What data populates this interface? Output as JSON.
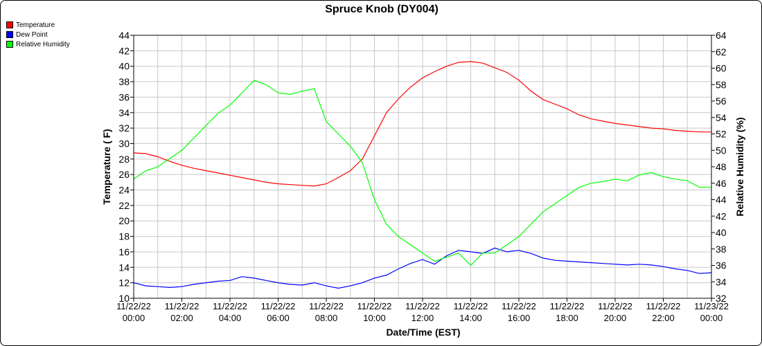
{
  "chart_data": {
    "type": "line",
    "title": "Spruce Knob (DY004)",
    "xlabel": "Date/Time (EST)",
    "ylabel": "Temperature ( F)",
    "y2label": "Relative Humidity (%)",
    "ylim": [
      10,
      44
    ],
    "y2lim": [
      32,
      64
    ],
    "yticks": [
      "10",
      "12",
      "14",
      "16",
      "18",
      "20",
      "22",
      "24",
      "26",
      "28",
      "30",
      "32",
      "34",
      "36",
      "38",
      "40",
      "42",
      "44"
    ],
    "y2ticks": [
      "32",
      "34",
      "36",
      "38",
      "40",
      "42",
      "44",
      "46",
      "48",
      "50",
      "52",
      "54",
      "56",
      "58",
      "60",
      "62",
      "64"
    ],
    "xticks": [
      {
        "date": "11/22/22",
        "time": "00:00"
      },
      {
        "date": "11/22/22",
        "time": "02:00"
      },
      {
        "date": "11/22/22",
        "time": "04:00"
      },
      {
        "date": "11/22/22",
        "time": "06:00"
      },
      {
        "date": "11/22/22",
        "time": "08:00"
      },
      {
        "date": "11/22/22",
        "time": "10:00"
      },
      {
        "date": "11/22/22",
        "time": "12:00"
      },
      {
        "date": "11/22/22",
        "time": "14:00"
      },
      {
        "date": "11/22/22",
        "time": "16:00"
      },
      {
        "date": "11/22/22",
        "time": "18:00"
      },
      {
        "date": "11/22/22",
        "time": "20:00"
      },
      {
        "date": "11/22/22",
        "time": "22:00"
      },
      {
        "date": "11/23/22",
        "time": "00:00"
      }
    ],
    "grid": true,
    "legend_position": "top-left",
    "series": [
      {
        "name": "Temperature",
        "color": "#ff0000",
        "axis": "left",
        "points": [
          [
            "00:00",
            28.8
          ],
          [
            "00:30",
            28.7
          ],
          [
            "01:00",
            28.3
          ],
          [
            "01:30",
            27.7
          ],
          [
            "02:00",
            27.2
          ],
          [
            "02:30",
            26.8
          ],
          [
            "03:00",
            26.5
          ],
          [
            "03:30",
            26.2
          ],
          [
            "04:00",
            25.9
          ],
          [
            "04:30",
            25.6
          ],
          [
            "05:00",
            25.3
          ],
          [
            "05:30",
            25.0
          ],
          [
            "06:00",
            24.8
          ],
          [
            "06:30",
            24.7
          ],
          [
            "07:00",
            24.6
          ],
          [
            "07:30",
            24.5
          ],
          [
            "08:00",
            24.8
          ],
          [
            "08:30",
            25.6
          ],
          [
            "09:00",
            26.5
          ],
          [
            "09:30",
            28.0
          ],
          [
            "10:00",
            31.0
          ],
          [
            "10:30",
            34.0
          ],
          [
            "11:00",
            35.8
          ],
          [
            "11:30",
            37.3
          ],
          [
            "12:00",
            38.5
          ],
          [
            "12:30",
            39.3
          ],
          [
            "13:00",
            40.0
          ],
          [
            "13:30",
            40.5
          ],
          [
            "14:00",
            40.6
          ],
          [
            "14:30",
            40.4
          ],
          [
            "15:00",
            39.8
          ],
          [
            "15:30",
            39.2
          ],
          [
            "16:00",
            38.2
          ],
          [
            "16:30",
            36.8
          ],
          [
            "17:00",
            35.7
          ],
          [
            "17:30",
            35.1
          ],
          [
            "18:00",
            34.5
          ],
          [
            "18:30",
            33.7
          ],
          [
            "19:00",
            33.2
          ],
          [
            "19:30",
            32.9
          ],
          [
            "20:00",
            32.6
          ],
          [
            "20:30",
            32.4
          ],
          [
            "21:00",
            32.2
          ],
          [
            "21:30",
            32.0
          ],
          [
            "22:00",
            31.9
          ],
          [
            "22:30",
            31.7
          ],
          [
            "23:00",
            31.6
          ],
          [
            "23:30",
            31.5
          ],
          [
            "24:00",
            31.5
          ]
        ]
      },
      {
        "name": "Dew Point",
        "color": "#0000ff",
        "axis": "left",
        "points": [
          [
            "00:00",
            12.0
          ],
          [
            "00:30",
            11.6
          ],
          [
            "01:00",
            11.5
          ],
          [
            "01:30",
            11.4
          ],
          [
            "02:00",
            11.5
          ],
          [
            "02:30",
            11.8
          ],
          [
            "03:00",
            12.0
          ],
          [
            "03:30",
            12.2
          ],
          [
            "04:00",
            12.3
          ],
          [
            "04:30",
            12.8
          ],
          [
            "05:00",
            12.6
          ],
          [
            "05:30",
            12.3
          ],
          [
            "06:00",
            12.0
          ],
          [
            "06:30",
            11.8
          ],
          [
            "07:00",
            11.7
          ],
          [
            "07:30",
            12.0
          ],
          [
            "08:00",
            11.6
          ],
          [
            "08:30",
            11.3
          ],
          [
            "09:00",
            11.6
          ],
          [
            "09:30",
            12.0
          ],
          [
            "10:00",
            12.6
          ],
          [
            "10:30",
            13.0
          ],
          [
            "11:00",
            13.8
          ],
          [
            "11:30",
            14.5
          ],
          [
            "12:00",
            15.0
          ],
          [
            "12:30",
            14.4
          ],
          [
            "13:00",
            15.5
          ],
          [
            "13:30",
            16.2
          ],
          [
            "14:00",
            16.0
          ],
          [
            "14:30",
            15.8
          ],
          [
            "15:00",
            16.5
          ],
          [
            "15:30",
            16.0
          ],
          [
            "16:00",
            16.2
          ],
          [
            "16:30",
            15.8
          ],
          [
            "17:00",
            15.2
          ],
          [
            "17:30",
            14.9
          ],
          [
            "18:00",
            14.8
          ],
          [
            "18:30",
            14.7
          ],
          [
            "19:00",
            14.6
          ],
          [
            "19:30",
            14.5
          ],
          [
            "20:00",
            14.4
          ],
          [
            "20:30",
            14.3
          ],
          [
            "21:00",
            14.4
          ],
          [
            "21:30",
            14.3
          ],
          [
            "22:00",
            14.1
          ],
          [
            "22:30",
            13.8
          ],
          [
            "23:00",
            13.6
          ],
          [
            "23:30",
            13.2
          ],
          [
            "24:00",
            13.3
          ]
        ]
      },
      {
        "name": "Relative Humidity",
        "color": "#00ff00",
        "axis": "right",
        "points": [
          [
            "00:00",
            46.5
          ],
          [
            "00:30",
            47.5
          ],
          [
            "01:00",
            48.0
          ],
          [
            "01:30",
            49.0
          ],
          [
            "02:00",
            50.0
          ],
          [
            "02:30",
            51.5
          ],
          [
            "03:00",
            53.0
          ],
          [
            "03:30",
            54.5
          ],
          [
            "04:00",
            55.5
          ],
          [
            "04:30",
            57.0
          ],
          [
            "05:00",
            58.5
          ],
          [
            "05:30",
            58.0
          ],
          [
            "06:00",
            57.0
          ],
          [
            "06:30",
            56.8
          ],
          [
            "07:00",
            57.2
          ],
          [
            "07:30",
            57.5
          ],
          [
            "08:00",
            53.5
          ],
          [
            "08:30",
            52.0
          ],
          [
            "09:00",
            50.5
          ],
          [
            "09:30",
            48.5
          ],
          [
            "10:00",
            44.0
          ],
          [
            "10:30",
            41.0
          ],
          [
            "11:00",
            39.5
          ],
          [
            "11:30",
            38.5
          ],
          [
            "12:00",
            37.5
          ],
          [
            "12:30",
            36.5
          ],
          [
            "13:00",
            37.0
          ],
          [
            "13:30",
            37.5
          ],
          [
            "14:00",
            36.0
          ],
          [
            "14:30",
            37.5
          ],
          [
            "15:00",
            37.5
          ],
          [
            "15:30",
            38.5
          ],
          [
            "16:00",
            39.5
          ],
          [
            "16:30",
            41.0
          ],
          [
            "17:00",
            42.5
          ],
          [
            "17:30",
            43.5
          ],
          [
            "18:00",
            44.5
          ],
          [
            "18:30",
            45.5
          ],
          [
            "19:00",
            46.0
          ],
          [
            "19:30",
            46.2
          ],
          [
            "20:00",
            46.5
          ],
          [
            "20:30",
            46.3
          ],
          [
            "21:00",
            47.0
          ],
          [
            "21:30",
            47.3
          ],
          [
            "22:00",
            46.8
          ],
          [
            "22:30",
            46.5
          ],
          [
            "23:00",
            46.3
          ],
          [
            "23:30",
            45.5
          ],
          [
            "24:00",
            45.5
          ]
        ]
      }
    ]
  }
}
